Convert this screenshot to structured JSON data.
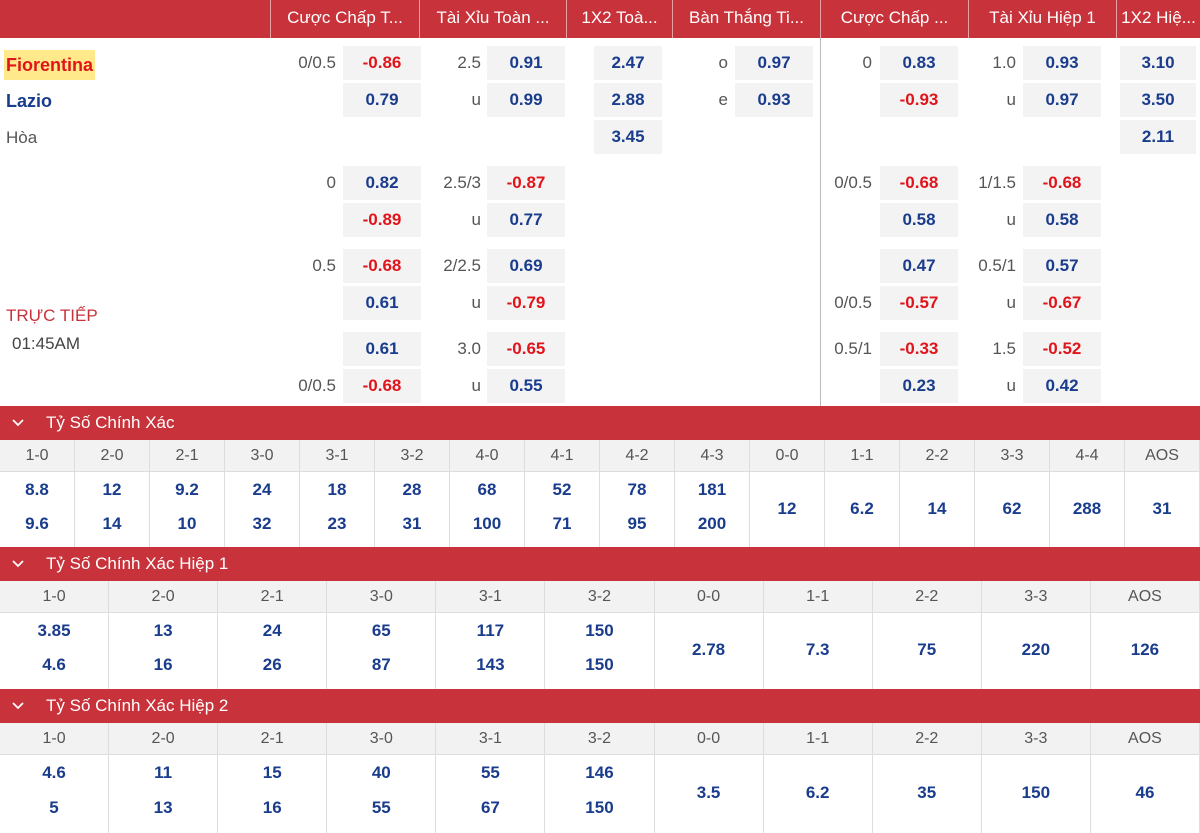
{
  "header": {
    "columns": [
      "Cược Chấp T...",
      "Tài Xỉu Toàn ...",
      "1X2 Toà...",
      "Bàn Thắng Ti...",
      "Cược Chấp ...",
      "Tài Xỉu Hiệp 1",
      "1X2 Hiệ..."
    ]
  },
  "match": {
    "home": "Fiorentina",
    "away": "Lazio",
    "draw": "Hòa",
    "status": "TRỰC TIẾP",
    "time": "01:45AM"
  },
  "odds": {
    "main": {
      "ah_line": "0/0.5",
      "ah_home": "-0.86",
      "ah_away": "0.79",
      "ou_line": "2.5",
      "ou_over": "0.91",
      "ou_under_label": "u",
      "ou_under": "0.99",
      "x12_home": "2.47",
      "x12_away": "2.88",
      "x12_draw": "3.45",
      "oe_o_label": "o",
      "oe_o": "0.97",
      "oe_e_label": "e",
      "oe_e": "0.93",
      "h1_ah_line": "0",
      "h1_ah_home": "0.83",
      "h1_ah_away": "-0.93",
      "h1_ou_line": "1.0",
      "h1_ou_over": "0.93",
      "h1_ou_under_label": "u",
      "h1_ou_under": "0.97",
      "h1_x12_home": "3.10",
      "h1_x12_away": "3.50",
      "h1_x12_draw": "2.11"
    },
    "alt": [
      {
        "ah_line_top": "0",
        "ah_top": "0.82",
        "ah_line_bot": "",
        "ah_bot": "-0.89",
        "ou_line": "2.5/3",
        "ou_top": "-0.87",
        "ou_bot_label": "u",
        "ou_bot": "0.77",
        "h1_ah_line_top": "0/0.5",
        "h1_ah_top": "-0.68",
        "h1_ah_line_bot": "",
        "h1_ah_bot": "0.58",
        "h1_ou_line": "1/1.5",
        "h1_ou_top": "-0.68",
        "h1_ou_bot_label": "u",
        "h1_ou_bot": "0.58"
      },
      {
        "ah_line_top": "0.5",
        "ah_top": "-0.68",
        "ah_line_bot": "",
        "ah_bot": "0.61",
        "ou_line": "2/2.5",
        "ou_top": "0.69",
        "ou_bot_label": "u",
        "ou_bot": "-0.79",
        "h1_ah_line_top": "",
        "h1_ah_top": "0.47",
        "h1_ah_line_bot": "0/0.5",
        "h1_ah_bot": "-0.57",
        "h1_ou_line": "0.5/1",
        "h1_ou_top": "0.57",
        "h1_ou_bot_label": "u",
        "h1_ou_bot": "-0.67"
      },
      {
        "ah_line_top": "",
        "ah_top": "0.61",
        "ah_line_bot": "0/0.5",
        "ah_bot": "-0.68",
        "ou_line": "3.0",
        "ou_top": "-0.65",
        "ou_bot_label": "u",
        "ou_bot": "0.55",
        "h1_ah_line_top": "0.5/1",
        "h1_ah_top": "-0.33",
        "h1_ah_line_bot": "",
        "h1_ah_bot": "0.23",
        "h1_ou_line": "1.5",
        "h1_ou_top": "-0.52",
        "h1_ou_bot_label": "u",
        "h1_ou_bot": "0.42"
      }
    ]
  },
  "sections": [
    {
      "title": "Tỷ Số Chính Xác",
      "columns": [
        "1-0",
        "2-0",
        "2-1",
        "3-0",
        "3-1",
        "3-2",
        "4-0",
        "4-1",
        "4-2",
        "4-3",
        "0-0",
        "1-1",
        "2-2",
        "3-3",
        "4-4",
        "AOS"
      ],
      "values": [
        [
          "8.8",
          "9.6"
        ],
        [
          "12",
          "14"
        ],
        [
          "9.2",
          "10"
        ],
        [
          "24",
          "32"
        ],
        [
          "18",
          "23"
        ],
        [
          "28",
          "31"
        ],
        [
          "68",
          "100"
        ],
        [
          "52",
          "71"
        ],
        [
          "78",
          "95"
        ],
        [
          "181",
          "200"
        ],
        [
          "12"
        ],
        [
          "6.2"
        ],
        [
          "14"
        ],
        [
          "62"
        ],
        [
          "288"
        ],
        [
          "31"
        ]
      ]
    },
    {
      "title": "Tỷ Số Chính Xác Hiệp 1",
      "columns": [
        "1-0",
        "2-0",
        "2-1",
        "3-0",
        "3-1",
        "3-2",
        "0-0",
        "1-1",
        "2-2",
        "3-3",
        "AOS"
      ],
      "values": [
        [
          "3.85",
          "4.6"
        ],
        [
          "13",
          "16"
        ],
        [
          "24",
          "26"
        ],
        [
          "65",
          "87"
        ],
        [
          "117",
          "143"
        ],
        [
          "150",
          "150"
        ],
        [
          "2.78"
        ],
        [
          "7.3"
        ],
        [
          "75"
        ],
        [
          "220"
        ],
        [
          "126"
        ]
      ]
    },
    {
      "title": "Tỷ Số Chính Xác Hiệp 2",
      "columns": [
        "1-0",
        "2-0",
        "2-1",
        "3-0",
        "3-1",
        "3-2",
        "0-0",
        "1-1",
        "2-2",
        "3-3",
        "AOS"
      ],
      "values": [
        [
          "4.6",
          "5"
        ],
        [
          "11",
          "13"
        ],
        [
          "15",
          "16"
        ],
        [
          "40",
          "55"
        ],
        [
          "55",
          "67"
        ],
        [
          "146",
          "150"
        ],
        [
          "3.5"
        ],
        [
          "6.2"
        ],
        [
          "35"
        ],
        [
          "150"
        ],
        [
          "46"
        ]
      ]
    }
  ],
  "colors": {
    "header_red": "#c8323a",
    "positive_odds": "#1a3c8c",
    "negative_odds": "#e0151c"
  }
}
